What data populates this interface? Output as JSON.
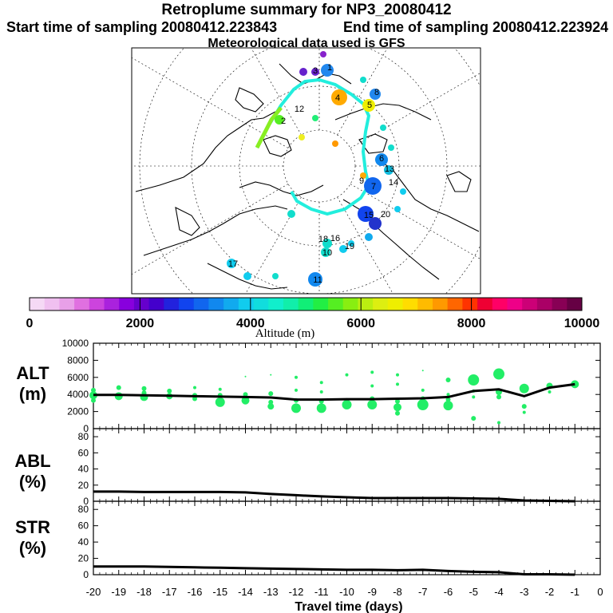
{
  "header": {
    "title": "Retroplume summary for NP3_20080412",
    "start_label": "Start time of sampling 20080412.223843",
    "end_label": "End time of sampling 20080412.223924",
    "met_label": "Meteorological data used is GFS"
  },
  "colorbar": {
    "label": "Altitude (m)",
    "ticks": [
      "0",
      "2000",
      "4000",
      "6000",
      "8000",
      "10000"
    ],
    "colors": [
      "#f5d9f5",
      "#f0c0f0",
      "#e8a0e8",
      "#e070e0",
      "#cc44dd",
      "#aa22dd",
      "#8800dd",
      "#6600cc",
      "#4400cc",
      "#2222dd",
      "#1144ee",
      "#1166ee",
      "#1188ee",
      "#11aaee",
      "#11ccee",
      "#11dddd",
      "#11eecc",
      "#11eeaa",
      "#11ee77",
      "#22ee44",
      "#55ee22",
      "#88ee11",
      "#bbee11",
      "#ddee11",
      "#eeee00",
      "#ffdd00",
      "#ffbb00",
      "#ff9900",
      "#ff6600",
      "#ff3300",
      "#ee0033",
      "#ff0066",
      "#ee0088",
      "#cc0077",
      "#aa0066",
      "#880055",
      "#660044"
    ]
  },
  "map": {
    "label_numbers": [
      "1",
      "2",
      "3",
      "4",
      "5",
      "6",
      "7",
      "8",
      "9",
      "10",
      "11",
      "12",
      "13",
      "14",
      "15",
      "16",
      "17",
      "18",
      "19",
      "20"
    ]
  },
  "panels": {
    "alt": {
      "label1": "ALT",
      "label2": "(m)"
    },
    "abl": {
      "label1": "ABL",
      "label2": "(%)"
    },
    "str": {
      "label1": "STR",
      "label2": "(%)"
    }
  },
  "xaxis_label": "Travel time (days)",
  "chart_data": [
    {
      "type": "line",
      "name": "ALT",
      "xlabel": "Travel time (days)",
      "ylabel": "ALT (m)",
      "xlim": [
        -20,
        0
      ],
      "ylim": [
        0,
        10000
      ],
      "xticks": [
        -20,
        -19,
        -18,
        -17,
        -16,
        -15,
        -14,
        -13,
        -12,
        -11,
        -10,
        -9,
        -8,
        -7,
        -6,
        -5,
        -4,
        -3,
        -2,
        -1,
        0
      ],
      "yticks": [
        0,
        2000,
        4000,
        6000,
        8000,
        10000
      ],
      "ytick_labels": [
        "0",
        "2000",
        "4000",
        "6000",
        "8000",
        "10000"
      ],
      "x": [
        -20,
        -19,
        -18,
        -17,
        -16,
        -15,
        -14,
        -13,
        -12,
        -11,
        -10,
        -9,
        -8,
        -7,
        -6,
        -5,
        -4,
        -3,
        -2,
        -1
      ],
      "y": [
        3950,
        3950,
        3900,
        3850,
        3800,
        3750,
        3700,
        3650,
        3400,
        3400,
        3450,
        3450,
        3500,
        3550,
        3700,
        4400,
        4600,
        3800,
        4800,
        5200
      ],
      "scatter": [
        {
          "x": -20,
          "y": 3900,
          "r": 5
        },
        {
          "x": -20,
          "y": 4500,
          "r": 3
        },
        {
          "x": -20,
          "y": 3300,
          "r": 3
        },
        {
          "x": -19,
          "y": 3800,
          "r": 5
        },
        {
          "x": -19,
          "y": 4800,
          "r": 3
        },
        {
          "x": -18,
          "y": 3700,
          "r": 5
        },
        {
          "x": -18,
          "y": 4700,
          "r": 3
        },
        {
          "x": -18,
          "y": 4200,
          "r": 3
        },
        {
          "x": -17,
          "y": 3800,
          "r": 4
        },
        {
          "x": -17,
          "y": 4400,
          "r": 3
        },
        {
          "x": -16,
          "y": 3900,
          "r": 3
        },
        {
          "x": -16,
          "y": 3500,
          "r": 3
        },
        {
          "x": -16,
          "y": 4800,
          "r": 2
        },
        {
          "x": -15,
          "y": 3100,
          "r": 6
        },
        {
          "x": -15,
          "y": 3900,
          "r": 3
        },
        {
          "x": -15,
          "y": 4600,
          "r": 2
        },
        {
          "x": -14,
          "y": 3300,
          "r": 5
        },
        {
          "x": -14,
          "y": 4000,
          "r": 3
        },
        {
          "x": -14,
          "y": 6100,
          "r": 1
        },
        {
          "x": -13,
          "y": 2600,
          "r": 4
        },
        {
          "x": -13,
          "y": 3100,
          "r": 3
        },
        {
          "x": -13,
          "y": 4100,
          "r": 3
        },
        {
          "x": -13,
          "y": 6300,
          "r": 1
        },
        {
          "x": -12,
          "y": 2400,
          "r": 6
        },
        {
          "x": -12,
          "y": 3300,
          "r": 3
        },
        {
          "x": -12,
          "y": 6000,
          "r": 2
        },
        {
          "x": -12,
          "y": 4500,
          "r": 2
        },
        {
          "x": -11,
          "y": 2400,
          "r": 6
        },
        {
          "x": -11,
          "y": 3200,
          "r": 3
        },
        {
          "x": -11,
          "y": 5400,
          "r": 2
        },
        {
          "x": -11,
          "y": 4300,
          "r": 2
        },
        {
          "x": -10,
          "y": 2800,
          "r": 6
        },
        {
          "x": -10,
          "y": 3300,
          "r": 3
        },
        {
          "x": -10,
          "y": 6300,
          "r": 2
        },
        {
          "x": -9,
          "y": 2800,
          "r": 6
        },
        {
          "x": -9,
          "y": 3500,
          "r": 3
        },
        {
          "x": -9,
          "y": 6600,
          "r": 2
        },
        {
          "x": -9,
          "y": 5000,
          "r": 2
        },
        {
          "x": -8,
          "y": 2500,
          "r": 5
        },
        {
          "x": -8,
          "y": 1800,
          "r": 3
        },
        {
          "x": -8,
          "y": 3200,
          "r": 3
        },
        {
          "x": -8,
          "y": 6300,
          "r": 2
        },
        {
          "x": -8,
          "y": 5200,
          "r": 2
        },
        {
          "x": -7,
          "y": 2800,
          "r": 7
        },
        {
          "x": -7,
          "y": 3500,
          "r": 3
        },
        {
          "x": -7,
          "y": 6800,
          "r": 1
        },
        {
          "x": -7,
          "y": 4500,
          "r": 2
        },
        {
          "x": -6,
          "y": 2700,
          "r": 6
        },
        {
          "x": -6,
          "y": 3400,
          "r": 3
        },
        {
          "x": -6,
          "y": 5700,
          "r": 3
        },
        {
          "x": -6,
          "y": 4000,
          "r": 2
        },
        {
          "x": -5,
          "y": 5700,
          "r": 7
        },
        {
          "x": -5,
          "y": 1200,
          "r": 3
        },
        {
          "x": -5,
          "y": 4400,
          "r": 2
        },
        {
          "x": -5,
          "y": 3700,
          "r": 2
        },
        {
          "x": -4,
          "y": 6400,
          "r": 7
        },
        {
          "x": -4,
          "y": 4300,
          "r": 4
        },
        {
          "x": -4,
          "y": 3700,
          "r": 3
        },
        {
          "x": -4,
          "y": 700,
          "r": 2
        },
        {
          "x": -3,
          "y": 4700,
          "r": 6
        },
        {
          "x": -3,
          "y": 2600,
          "r": 3
        },
        {
          "x": -3,
          "y": 1900,
          "r": 2
        },
        {
          "x": -2,
          "y": 5000,
          "r": 4
        },
        {
          "x": -2,
          "y": 4300,
          "r": 2
        },
        {
          "x": -1,
          "y": 5200,
          "r": 5
        }
      ]
    },
    {
      "type": "line",
      "name": "ABL",
      "ylabel": "ABL (%)",
      "xlim": [
        -20,
        0
      ],
      "ylim": [
        0,
        90
      ],
      "yticks": [
        0,
        20,
        40,
        60,
        80
      ],
      "ytick_labels": [
        "0",
        "20",
        "40",
        "60",
        "80"
      ],
      "x": [
        -20,
        -19,
        -18,
        -17,
        -16,
        -15,
        -14,
        -13,
        -12,
        -11,
        -10,
        -9,
        -8,
        -7,
        -6,
        -5,
        -4,
        -3,
        -2,
        -1
      ],
      "y": [
        12,
        12,
        11.5,
        11.5,
        11.5,
        11.5,
        11,
        9,
        7.5,
        6,
        5,
        4,
        4,
        4,
        4,
        3.5,
        3,
        1,
        0.5,
        0
      ]
    },
    {
      "type": "line",
      "name": "STR",
      "ylabel": "STR (%)",
      "xlim": [
        -20,
        0
      ],
      "ylim": [
        0,
        90
      ],
      "yticks": [
        0,
        20,
        40,
        60,
        80
      ],
      "ytick_labels": [
        "0",
        "20",
        "40",
        "60",
        "80"
      ],
      "x": [
        -20,
        -19,
        -18,
        -17,
        -16,
        -15,
        -14,
        -13,
        -12,
        -11,
        -10,
        -9,
        -8,
        -7,
        -6,
        -5,
        -4,
        -3,
        -2,
        -1
      ],
      "y": [
        10,
        10,
        10,
        9.5,
        9,
        8.5,
        8,
        7.5,
        7,
        6.5,
        6,
        6,
        5.5,
        6,
        4.5,
        3.5,
        3,
        0.5,
        0.5,
        0
      ]
    }
  ]
}
